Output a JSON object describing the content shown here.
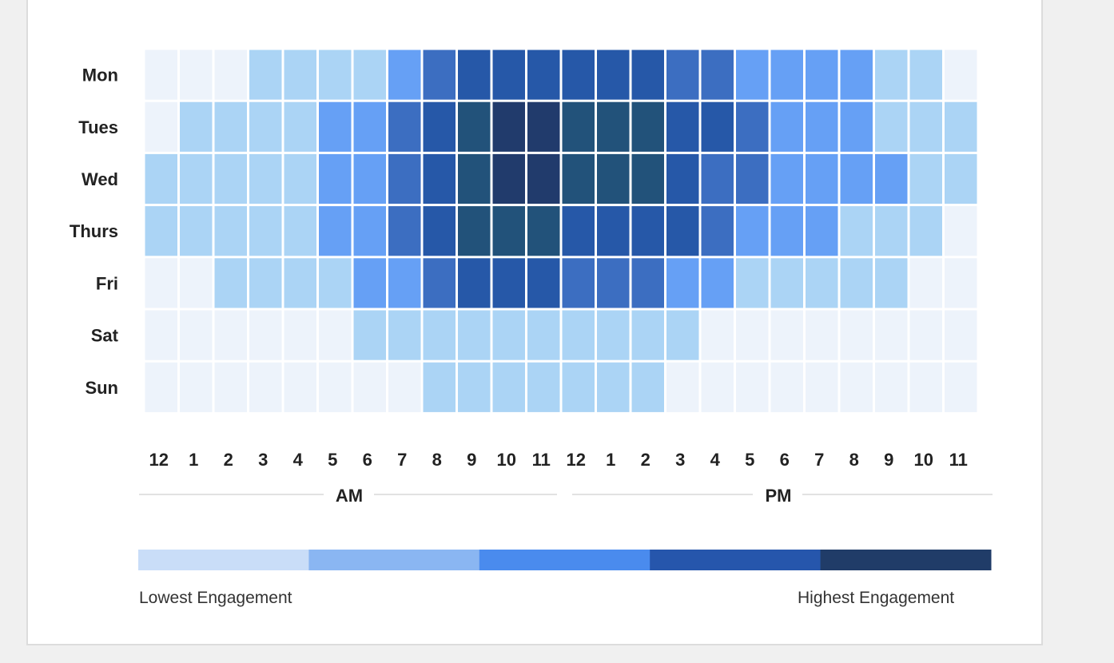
{
  "chart_data": {
    "type": "heatmap",
    "rows": [
      "Mon",
      "Tues",
      "Wed",
      "Thurs",
      "Fri",
      "Sat",
      "Sun"
    ],
    "columns": [
      "12",
      "1",
      "2",
      "3",
      "4",
      "5",
      "6",
      "7",
      "8",
      "9",
      "10",
      "11",
      "12",
      "1",
      "2",
      "3",
      "4",
      "5",
      "6",
      "7",
      "8",
      "9",
      "10",
      "11"
    ],
    "periods": [
      "AM",
      "PM"
    ],
    "level_scale": [
      0,
      1,
      2,
      3,
      4,
      5,
      6
    ],
    "values": [
      [
        0,
        0,
        0,
        1,
        1,
        1,
        1,
        2,
        3,
        4,
        4,
        4,
        4,
        4,
        4,
        3,
        3,
        2,
        2,
        2,
        2,
        1,
        1,
        0
      ],
      [
        0,
        1,
        1,
        1,
        1,
        2,
        2,
        3,
        4,
        5,
        6,
        6,
        5,
        5,
        5,
        4,
        4,
        3,
        2,
        2,
        2,
        1,
        1,
        1
      ],
      [
        1,
        1,
        1,
        1,
        1,
        2,
        2,
        3,
        4,
        5,
        6,
        6,
        5,
        5,
        5,
        4,
        3,
        3,
        2,
        2,
        2,
        2,
        1,
        1
      ],
      [
        1,
        1,
        1,
        1,
        1,
        2,
        2,
        3,
        4,
        5,
        5,
        5,
        4,
        4,
        4,
        4,
        3,
        2,
        2,
        2,
        1,
        1,
        1,
        0
      ],
      [
        0,
        0,
        1,
        1,
        1,
        1,
        2,
        2,
        3,
        4,
        4,
        4,
        3,
        3,
        3,
        2,
        2,
        1,
        1,
        1,
        1,
        1,
        0,
        0
      ],
      [
        0,
        0,
        0,
        0,
        0,
        0,
        1,
        1,
        1,
        1,
        1,
        1,
        1,
        1,
        1,
        1,
        0,
        0,
        0,
        0,
        0,
        0,
        0,
        0
      ],
      [
        0,
        0,
        0,
        0,
        0,
        0,
        0,
        0,
        1,
        1,
        1,
        1,
        1,
        1,
        1,
        0,
        0,
        0,
        0,
        0,
        0,
        0,
        0,
        0
      ]
    ],
    "cell_colors": [
      "#edf3fb",
      "#abd4f5",
      "#66a0f5",
      "#3c6ec1",
      "#2658a8",
      "#22527a",
      "#213b6c"
    ],
    "legend": {
      "colors": [
        "#c9ddf8",
        "#8ab6f2",
        "#4a8bee",
        "#2656ac",
        "#203c68"
      ],
      "low_label": "Lowest Engagement",
      "high_label": "Highest Engagement"
    }
  }
}
